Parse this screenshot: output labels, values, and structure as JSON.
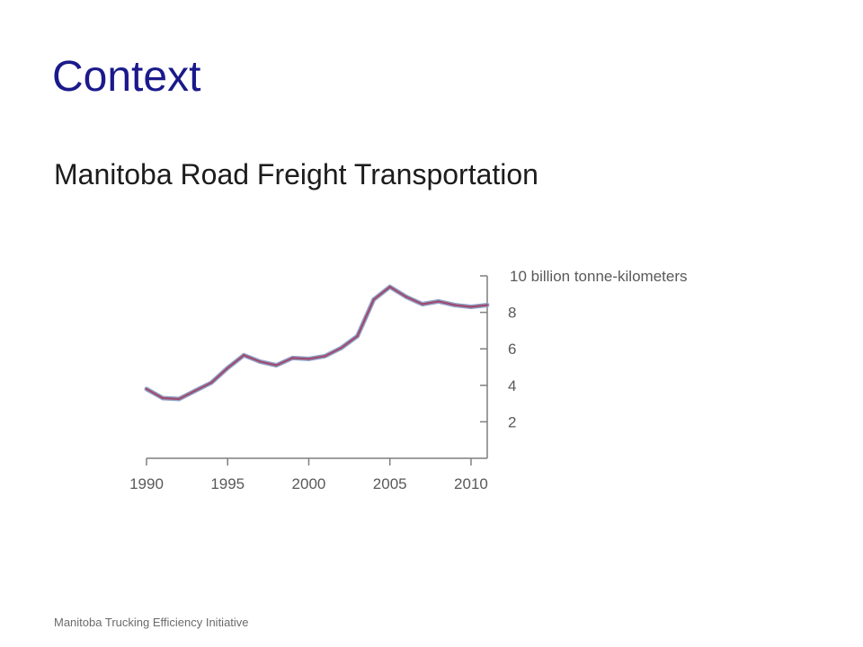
{
  "slide": {
    "title": "Context",
    "subtitle": "Manitoba Road Freight Transportation",
    "footer": "Manitoba Trucking Efficiency Initiative"
  },
  "chart_data": {
    "type": "line",
    "title": "",
    "xlabel": "",
    "ylabel": "10 billion tonne-kilometers",
    "x": [
      1990,
      1991,
      1992,
      1993,
      1994,
      1995,
      1996,
      1997,
      1998,
      1999,
      2000,
      2001,
      2002,
      2003,
      2004,
      2005,
      2006,
      2007,
      2008,
      2009,
      2010,
      2011
    ],
    "series": [
      {
        "values": [
          3.8,
          3.3,
          3.25,
          3.7,
          4.15,
          4.95,
          5.65,
          5.3,
          5.1,
          5.5,
          5.45,
          5.6,
          6.05,
          6.7,
          8.7,
          9.4,
          8.85,
          8.45,
          8.6,
          8.4,
          8.3,
          8.4
        ]
      }
    ],
    "xlim": [
      1990,
      2011
    ],
    "ylim": [
      0,
      10
    ],
    "xticks": [
      1990,
      1995,
      2000,
      2005,
      2010
    ],
    "yticks": [
      2,
      4,
      6,
      8
    ],
    "ytick_labels": [
      "2",
      "4",
      "6",
      "8"
    ],
    "grid": false,
    "y_axis_side": "right",
    "line_color": "#a04a6e"
  }
}
